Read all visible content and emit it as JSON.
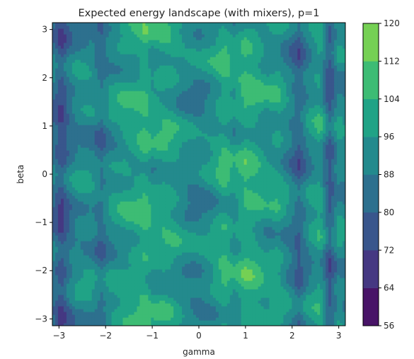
{
  "chart_data": {
    "type": "heatmap",
    "subtype": "filled-contour",
    "title": "Expected energy landscape (with mixers), p=1",
    "xlabel": "gamma",
    "ylabel": "beta",
    "xlim": [
      -3.14159,
      3.14159
    ],
    "ylim": [
      -3.14159,
      3.14159
    ],
    "x_ticks": [
      -3,
      -2,
      -1,
      0,
      1,
      2,
      3
    ],
    "y_ticks": [
      -3,
      -2,
      -1,
      0,
      1,
      2,
      3
    ],
    "x_tick_labels": [
      "−3",
      "−2",
      "−1",
      "0",
      "1",
      "2",
      "3"
    ],
    "y_tick_labels": [
      "−3",
      "−2",
      "−1",
      "0",
      "1",
      "2",
      "3"
    ],
    "colormap": "viridis",
    "levels": [
      56,
      64,
      72,
      80,
      88,
      96,
      104,
      112,
      120
    ],
    "level_colors": [
      "#481467",
      "#453882",
      "#39568c",
      "#2d708e",
      "#238a8d",
      "#20a386",
      "#3dbc74",
      "#75d054",
      "#bade28"
    ],
    "colorbar": {
      "ticks": [
        56,
        64,
        72,
        80,
        88,
        96,
        104,
        112,
        120
      ],
      "tick_labels": [
        "56",
        "64",
        "72",
        "80",
        "88",
        "96",
        "104",
        "112",
        "120"
      ]
    },
    "grid": false,
    "approx_gamma_profile": {
      "gamma": [
        -3.14,
        -2.95,
        -2.8,
        -2.6,
        -2.3,
        -2.1,
        -1.9,
        -1.6,
        -1.35,
        -1.15,
        -1.0,
        -0.75,
        -0.55,
        -0.3,
        0.0,
        0.3,
        0.55,
        0.75,
        1.0,
        1.2,
        1.45,
        1.7,
        1.95,
        2.15,
        2.35,
        2.6,
        2.8,
        3.0,
        3.14
      ],
      "mean_energy": [
        86,
        74,
        84,
        92,
        92,
        84,
        93,
        98,
        100,
        104,
        98,
        100,
        98,
        92,
        90,
        95,
        103,
        96,
        104,
        102,
        96,
        98,
        89,
        80,
        92,
        99,
        78,
        93,
        90
      ]
    }
  }
}
